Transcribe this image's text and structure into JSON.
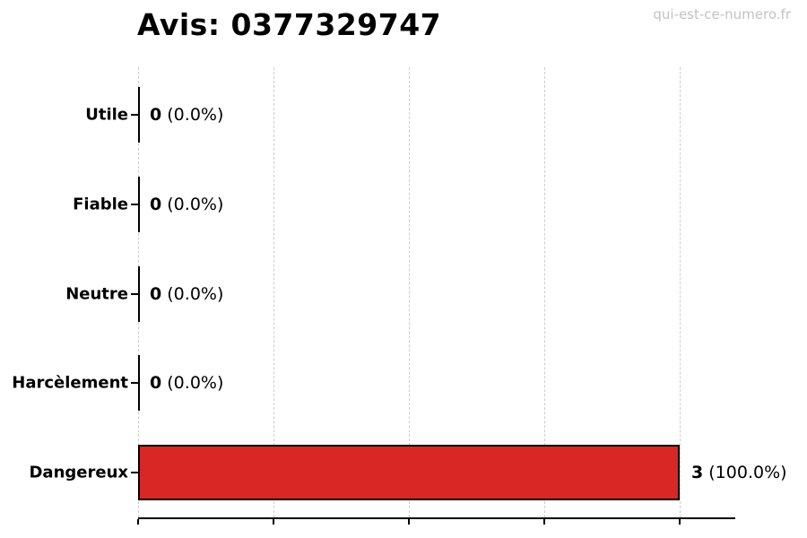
{
  "title": "Avis: 0377329747",
  "watermark": "qui-est-ce-numero.fr",
  "chart_data": {
    "type": "bar",
    "orientation": "horizontal",
    "title": "Avis: 0377329747",
    "xlabel": "",
    "ylabel": "",
    "categories": [
      "Utile",
      "Fiable",
      "Neutre",
      "Harcèlement",
      "Dangereux"
    ],
    "values": [
      0,
      0,
      0,
      0,
      3
    ],
    "annotations": [
      {
        "count": "0",
        "pct": "(0.0%)"
      },
      {
        "count": "0",
        "pct": "(0.0%)"
      },
      {
        "count": "0",
        "pct": "(0.0%)"
      },
      {
        "count": "0",
        "pct": "(0.0%)"
      },
      {
        "count": "3",
        "pct": "(100.0%)"
      }
    ],
    "xlim": [
      0,
      3.31
    ],
    "grid_values": [
      0,
      0.75,
      1.5,
      2.25,
      3
    ],
    "grid_on": true,
    "grid_style": "dashed",
    "legend": null,
    "bar_color": "#d92726",
    "bar_edge_color": "#000000",
    "grid_color": "#cdcdcd",
    "watermark_color": "#c3c3c3"
  }
}
